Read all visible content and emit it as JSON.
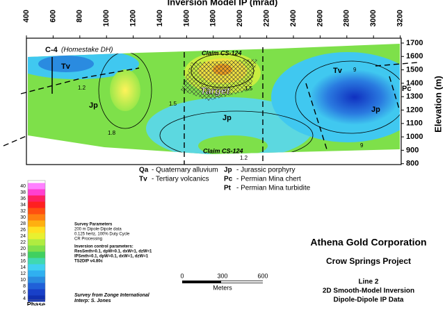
{
  "title": "Inversion Model IP (mrad)",
  "top_axis": {
    "ticks": [
      400,
      600,
      800,
      1000,
      1200,
      1400,
      1600,
      1800,
      2000,
      2200,
      2400,
      2600,
      2800,
      3000,
      3200
    ]
  },
  "right_axis": {
    "label": "Elevation (m)",
    "ticks": [
      1700,
      1600,
      1500,
      1400,
      1300,
      1200,
      1100,
      1000,
      900,
      800
    ]
  },
  "section_labels": [
    {
      "text": "C-4"
    },
    {
      "text": "(Homestake DH)"
    },
    {
      "text": "Tv"
    },
    {
      "text": "Jp"
    },
    {
      "text": "Claim CS-124"
    },
    {
      "text": "Target"
    },
    {
      "text": "Jp"
    },
    {
      "text": "Claim CS-124"
    },
    {
      "text": "Tv"
    },
    {
      "text": "Pc"
    },
    {
      "text": "Jp"
    }
  ],
  "contour_labels": [
    "1.2",
    "1.5",
    "1.8",
    "1.5",
    "9",
    "9",
    "1.2"
  ],
  "legend": [
    {
      "code": "Qa",
      "text": "- Quaternary alluvium"
    },
    {
      "code": "Tv",
      "text": "- Tertiary volcanics"
    },
    {
      "code": "Jp",
      "text": "- Jurassic porphyry"
    },
    {
      "code": "Pc",
      "text": "- Permian Mina chert"
    },
    {
      "code": "Pt",
      "text": "- Permian Mina turbidite"
    }
  ],
  "colorbar": {
    "ticks": [
      40,
      38,
      36,
      34,
      32,
      30,
      28,
      26,
      24,
      22,
      20,
      18,
      16,
      14,
      12,
      10,
      8,
      6,
      4
    ],
    "label": "Phase"
  },
  "survey_parameters": [
    "Survey Parameters",
    "200 m Dipole-Dipole data",
    "0.125 hertz, 100% Duty Cycle",
    "CR Processing"
  ],
  "inversion_parameters": [
    "Inversion control parameters:",
    "ResSmth=0.1, dpW=0.1, dxW=1, dzW=1",
    "IPSmth=0.1, dpW=0.1, dxW=1, dzW=1",
    "TS2DIP v4.80c"
  ],
  "credits": [
    "Survey from Zonge International",
    "Interp: S. Jones"
  ],
  "scale_bar": {
    "ticks": [
      0,
      300,
      600
    ],
    "unit": "Meters"
  },
  "company": "Athena Gold Corporation",
  "project": "Crow Springs Project",
  "subtitle_lines": [
    "Line 2",
    "2D Smooth-Model Inversion",
    "Dipole-Dipole IP Data"
  ]
}
